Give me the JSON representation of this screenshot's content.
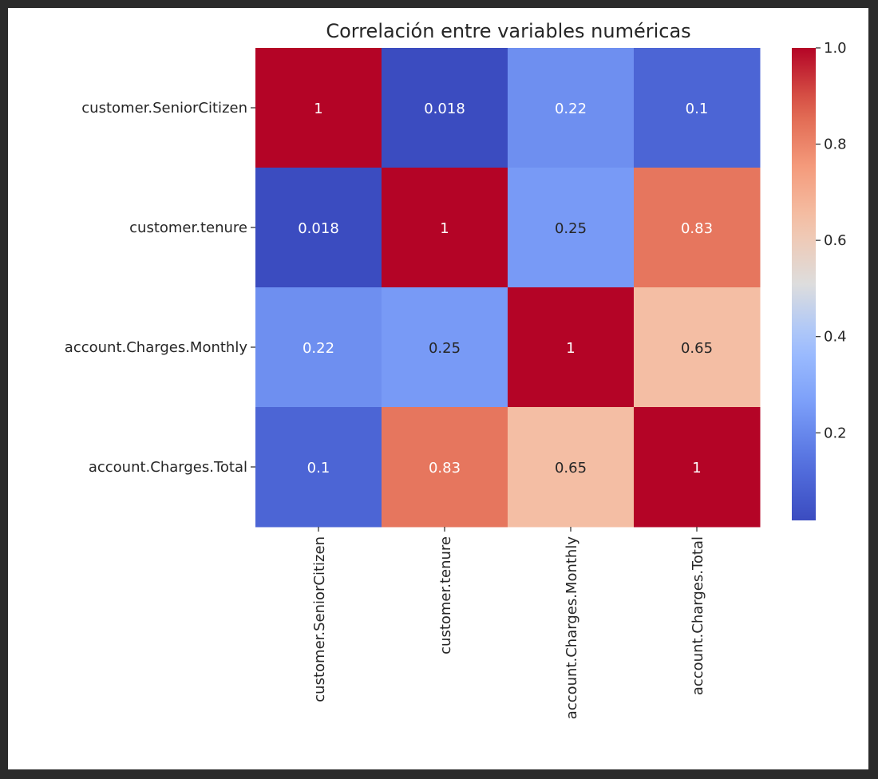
{
  "chart_data": {
    "type": "heatmap",
    "title": "Correlación entre variables numéricas",
    "row_labels": [
      "customer.SeniorCitizen",
      "customer.tenure",
      "account.Charges.Monthly",
      "account.Charges.Total"
    ],
    "col_labels": [
      "customer.SeniorCitizen",
      "customer.tenure",
      "account.Charges.Monthly",
      "account.Charges.Total"
    ],
    "values": [
      [
        1,
        0.018,
        0.22,
        0.1
      ],
      [
        0.018,
        1,
        0.25,
        0.83
      ],
      [
        0.22,
        0.25,
        1,
        0.65
      ],
      [
        0.1,
        0.83,
        0.65,
        1
      ]
    ],
    "cell_text": [
      [
        "1",
        "0.018",
        "0.22",
        "0.1"
      ],
      [
        "0.018",
        "1",
        "0.25",
        "0.83"
      ],
      [
        "0.22",
        "0.25",
        "1",
        "0.65"
      ],
      [
        "0.1",
        "0.83",
        "0.65",
        "1"
      ]
    ],
    "colormap": "coolwarm",
    "vmin": 0.018,
    "vmax": 1.0,
    "colorbar_ticks": [
      0.2,
      0.4,
      0.6,
      0.8,
      1.0
    ],
    "colorbar_tick_labels": [
      "0.2",
      "0.4",
      "0.6",
      "0.8",
      "1.0"
    ],
    "colorbar_position": "right",
    "grid": false
  }
}
